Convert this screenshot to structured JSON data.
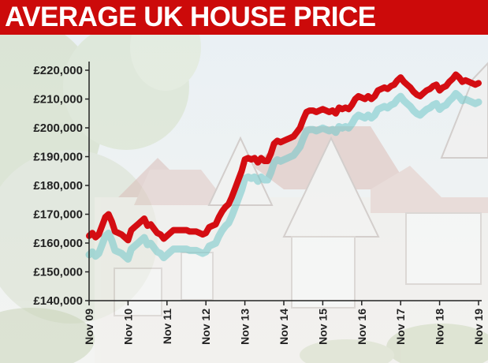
{
  "title": "AVERAGE UK HOUSE PRICE",
  "colors": {
    "header": "#cc0a0a",
    "line": "#d40d12",
    "shadow": "#6fc6c9",
    "axis": "#222222"
  },
  "chart_data": {
    "type": "line",
    "title": "AVERAGE UK HOUSE PRICE",
    "xlabel": "",
    "ylabel": "",
    "x_tick_labels": [
      "Nov 09",
      "Nov 10",
      "Nov 11",
      "Nov 12",
      "Nov 13",
      "Nov 14",
      "Nov 15",
      "Nov 16",
      "Nov 17",
      "Nov 18",
      "Nov 19"
    ],
    "y_tick_labels": [
      "£220,000",
      "£210,000",
      "£200,000",
      "£190,000",
      "£180,000",
      "£170,000",
      "£160,000",
      "£150,000",
      "£140,000"
    ],
    "y_ticks": [
      220000,
      210000,
      200000,
      190000,
      180000,
      170000,
      160000,
      150000,
      140000
    ],
    "ylim": [
      140000,
      220000
    ],
    "xlim": [
      "2009-11",
      "2019-11"
    ],
    "grid": false,
    "series": [
      {
        "color": "#d40d12",
        "points": [
          [
            "2009-11",
            162500
          ],
          [
            "2009-12",
            163500
          ],
          [
            "2010-01",
            162000
          ],
          [
            "2010-02",
            163000
          ],
          [
            "2010-03",
            166000
          ],
          [
            "2010-04",
            169000
          ],
          [
            "2010-05",
            170000
          ],
          [
            "2010-06",
            167500
          ],
          [
            "2010-07",
            164000
          ],
          [
            "2010-08",
            163500
          ],
          [
            "2010-09",
            163000
          ],
          [
            "2010-10",
            162000
          ],
          [
            "2010-11",
            161000
          ],
          [
            "2010-12",
            164500
          ],
          [
            "2011-01",
            165500
          ],
          [
            "2011-02",
            166500
          ],
          [
            "2011-03",
            167500
          ],
          [
            "2011-04",
            168500
          ],
          [
            "2011-05",
            166000
          ],
          [
            "2011-06",
            166500
          ],
          [
            "2011-07",
            165000
          ],
          [
            "2011-08",
            163500
          ],
          [
            "2011-09",
            163000
          ],
          [
            "2011-10",
            161500
          ],
          [
            "2011-11",
            162500
          ],
          [
            "2011-12",
            163500
          ],
          [
            "2012-01",
            164500
          ],
          [
            "2012-02",
            164500
          ],
          [
            "2012-03",
            164500
          ],
          [
            "2012-04",
            164500
          ],
          [
            "2012-05",
            164500
          ],
          [
            "2012-06",
            164000
          ],
          [
            "2012-07",
            164000
          ],
          [
            "2012-08",
            164000
          ],
          [
            "2012-09",
            163500
          ],
          [
            "2012-10",
            163000
          ],
          [
            "2012-11",
            163500
          ],
          [
            "2012-12",
            165500
          ],
          [
            "2013-01",
            166000
          ],
          [
            "2013-02",
            166500
          ],
          [
            "2013-03",
            169000
          ],
          [
            "2013-04",
            171000
          ],
          [
            "2013-05",
            172500
          ],
          [
            "2013-06",
            173500
          ],
          [
            "2013-07",
            176000
          ],
          [
            "2013-08",
            179000
          ],
          [
            "2013-09",
            182000
          ],
          [
            "2013-10",
            185000
          ],
          [
            "2013-11",
            189000
          ],
          [
            "2013-12",
            189500
          ],
          [
            "2014-01",
            189000
          ],
          [
            "2014-02",
            189500
          ],
          [
            "2014-03",
            188000
          ],
          [
            "2014-04",
            189500
          ],
          [
            "2014-05",
            188500
          ],
          [
            "2014-06",
            188500
          ],
          [
            "2014-07",
            191000
          ],
          [
            "2014-08",
            194500
          ],
          [
            "2014-09",
            195500
          ],
          [
            "2014-10",
            195000
          ],
          [
            "2014-11",
            195500
          ],
          [
            "2014-12",
            196000
          ],
          [
            "2015-01",
            196500
          ],
          [
            "2015-02",
            197000
          ],
          [
            "2015-03",
            198500
          ],
          [
            "2015-04",
            200000
          ],
          [
            "2015-05",
            203000
          ],
          [
            "2015-06",
            205500
          ],
          [
            "2015-07",
            206000
          ],
          [
            "2015-08",
            206000
          ],
          [
            "2015-09",
            205500
          ],
          [
            "2015-10",
            206000
          ],
          [
            "2015-11",
            206500
          ],
          [
            "2015-12",
            206000
          ],
          [
            "2016-01",
            205500
          ],
          [
            "2016-02",
            206000
          ],
          [
            "2016-03",
            205000
          ],
          [
            "2016-04",
            207000
          ],
          [
            "2016-05",
            206500
          ],
          [
            "2016-06",
            207000
          ],
          [
            "2016-07",
            206500
          ],
          [
            "2016-08",
            208000
          ],
          [
            "2016-09",
            210000
          ],
          [
            "2016-10",
            211000
          ],
          [
            "2016-11",
            210500
          ],
          [
            "2016-12",
            210000
          ],
          [
            "2017-01",
            211000
          ],
          [
            "2017-02",
            210000
          ],
          [
            "2017-03",
            211000
          ],
          [
            "2017-04",
            213000
          ],
          [
            "2017-05",
            213500
          ],
          [
            "2017-06",
            214000
          ],
          [
            "2017-07",
            213500
          ],
          [
            "2017-08",
            214500
          ],
          [
            "2017-09",
            215000
          ],
          [
            "2017-10",
            216500
          ],
          [
            "2017-11",
            217500
          ],
          [
            "2017-12",
            216000
          ],
          [
            "2018-01",
            215000
          ],
          [
            "2018-02",
            214000
          ],
          [
            "2018-03",
            212500
          ],
          [
            "2018-04",
            211500
          ],
          [
            "2018-05",
            211000
          ],
          [
            "2018-06",
            212000
          ],
          [
            "2018-07",
            213000
          ],
          [
            "2018-08",
            213500
          ],
          [
            "2018-09",
            214500
          ],
          [
            "2018-10",
            215000
          ],
          [
            "2018-11",
            213000
          ],
          [
            "2018-12",
            214000
          ],
          [
            "2019-01",
            214500
          ],
          [
            "2019-02",
            216000
          ],
          [
            "2019-03",
            217000
          ],
          [
            "2019-04",
            218500
          ],
          [
            "2019-05",
            217500
          ],
          [
            "2019-06",
            216000
          ],
          [
            "2019-07",
            216500
          ],
          [
            "2019-08",
            216000
          ],
          [
            "2019-09",
            215500
          ],
          [
            "2019-10",
            215000
          ],
          [
            "2019-11",
            215500
          ]
        ]
      }
    ]
  }
}
